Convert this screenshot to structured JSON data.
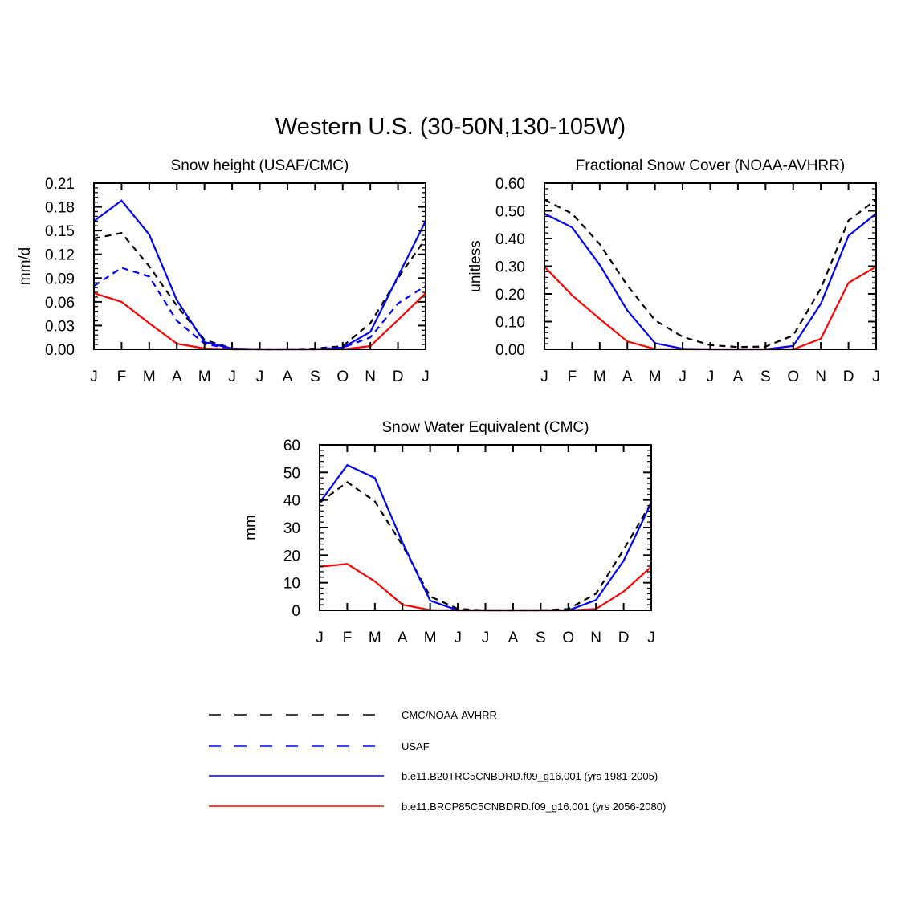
{
  "title": "Western U.S. (30-50N,130-105W)",
  "months": [
    "J",
    "F",
    "M",
    "A",
    "M",
    "J",
    "J",
    "A",
    "S",
    "O",
    "N",
    "D",
    "J"
  ],
  "series_styles": {
    "obs": {
      "color": "#000000",
      "dash": "8,6"
    },
    "usaf": {
      "color": "#0000ff",
      "dash": "8,6"
    },
    "hist": {
      "color": "#0000ff",
      "dash": ""
    },
    "future": {
      "color": "#ff0000",
      "dash": ""
    }
  },
  "chart_data": [
    {
      "type": "line",
      "title": "Snow height (USAF/CMC)",
      "ylabel": "mm/d",
      "ylim": [
        0,
        0.21
      ],
      "yticks": [
        "0.00",
        "0.03",
        "0.06",
        "0.09",
        "0.12",
        "0.15",
        "0.18",
        "0.21"
      ],
      "x": [
        "J",
        "F",
        "M",
        "A",
        "M",
        "J",
        "J",
        "A",
        "S",
        "O",
        "N",
        "D",
        "J"
      ],
      "series": [
        {
          "key": "obs",
          "values": [
            0.14,
            0.147,
            0.105,
            0.055,
            0.012,
            0.001,
            0.0,
            0.0,
            0.001,
            0.004,
            0.033,
            0.09,
            0.14
          ]
        },
        {
          "key": "usaf",
          "values": [
            0.08,
            0.103,
            0.092,
            0.036,
            0.007,
            0.0,
            0.0,
            0.0,
            0.0,
            0.002,
            0.015,
            0.058,
            0.08
          ]
        },
        {
          "key": "hist",
          "values": [
            0.162,
            0.188,
            0.145,
            0.062,
            0.009,
            0.001,
            0.0,
            0.0,
            0.0,
            0.002,
            0.022,
            0.092,
            0.162
          ]
        },
        {
          "key": "future",
          "values": [
            0.071,
            0.06,
            0.033,
            0.007,
            0.001,
            0.0,
            0.0,
            0.0,
            0.0,
            0.0,
            0.004,
            0.037,
            0.071
          ]
        }
      ]
    },
    {
      "type": "line",
      "title": "Fractional Snow Cover (NOAA-AVHRR)",
      "ylabel": "unitless",
      "ylim": [
        0,
        0.6
      ],
      "yticks": [
        "0.00",
        "0.10",
        "0.20",
        "0.30",
        "0.40",
        "0.50",
        "0.60"
      ],
      "x": [
        "J",
        "F",
        "M",
        "A",
        "M",
        "J",
        "J",
        "A",
        "S",
        "O",
        "N",
        "D",
        "J"
      ],
      "series": [
        {
          "key": "obs",
          "values": [
            0.54,
            0.49,
            0.38,
            0.23,
            0.105,
            0.045,
            0.015,
            0.008,
            0.01,
            0.05,
            0.22,
            0.465,
            0.54
          ]
        },
        {
          "key": "hist",
          "values": [
            0.49,
            0.44,
            0.305,
            0.14,
            0.022,
            0.002,
            0.0,
            0.0,
            0.0,
            0.012,
            0.165,
            0.41,
            0.49
          ]
        },
        {
          "key": "future",
          "values": [
            0.298,
            0.195,
            0.11,
            0.028,
            0.001,
            0.0,
            0.0,
            0.0,
            0.0,
            0.0,
            0.038,
            0.24,
            0.298
          ]
        }
      ]
    },
    {
      "type": "line",
      "title": "Snow Water Equivalent (CMC)",
      "ylabel": "mm",
      "ylim": [
        0,
        60
      ],
      "yticks": [
        "0",
        "10",
        "20",
        "30",
        "40",
        "50",
        "60"
      ],
      "x": [
        "J",
        "F",
        "M",
        "A",
        "M",
        "J",
        "J",
        "A",
        "S",
        "O",
        "N",
        "D",
        "J"
      ],
      "series": [
        {
          "key": "obs",
          "values": [
            39.0,
            46.5,
            39.5,
            23.5,
            5.0,
            0.5,
            0.0,
            0.0,
            0.0,
            0.5,
            6.0,
            22.0,
            39.0
          ]
        },
        {
          "key": "hist",
          "values": [
            39.0,
            52.7,
            48.0,
            24.5,
            3.5,
            0.0,
            0.0,
            0.0,
            0.0,
            0.0,
            3.7,
            18.0,
            39.0
          ]
        },
        {
          "key": "future",
          "values": [
            15.8,
            16.8,
            10.5,
            2.0,
            0.1,
            0.0,
            0.0,
            0.0,
            0.0,
            0.0,
            0.5,
            6.8,
            15.8
          ]
        }
      ]
    }
  ],
  "legend": [
    {
      "key": "obs",
      "label": "CMC/NOAA-AVHRR"
    },
    {
      "key": "usaf",
      "label": "USAF"
    },
    {
      "key": "hist",
      "label": "b.e11.B20TRC5CNBDRD.f09_g16.001 (yrs 1981-2005)"
    },
    {
      "key": "future",
      "label": "b.e11.BRCP85C5CNBDRD.f09_g16.001 (yrs 2056-2080)"
    }
  ]
}
